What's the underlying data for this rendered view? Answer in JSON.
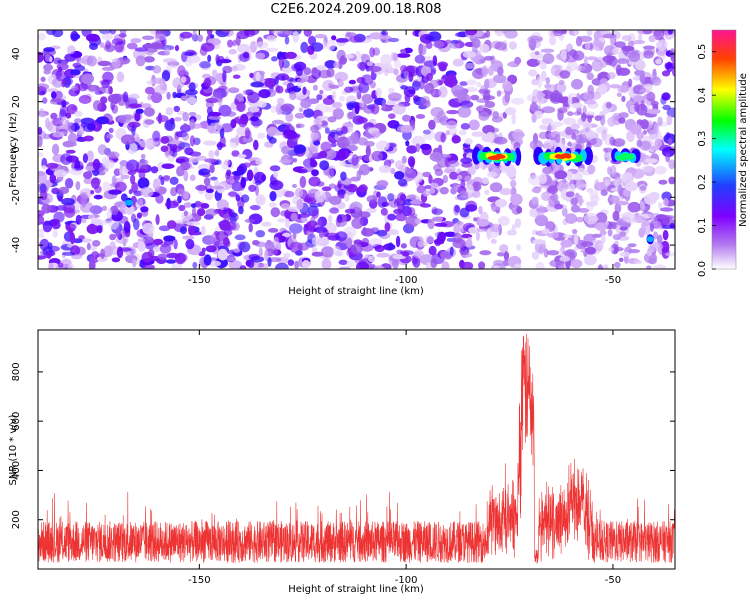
{
  "title": "C2E6.2024.209.00.18.R08",
  "chart_data": [
    {
      "type": "heatmap",
      "xlabel": "Height of straight line (km)",
      "ylabel": "Frequency (Hz)",
      "xlim": [
        -189,
        -35
      ],
      "ylim": [
        -50,
        50
      ],
      "xticks": [
        -150,
        -100,
        -50
      ],
      "yticks": [
        -40,
        -20,
        0,
        20,
        40
      ],
      "colorbar": {
        "label": "Normalized spectral amplitude",
        "range": [
          0,
          0.55
        ],
        "ticks": [
          0.0,
          0.1,
          0.2,
          0.3,
          0.4,
          0.5
        ],
        "colors": [
          "#ffffff",
          "#8a2be2",
          "#3300ff",
          "#00ffff",
          "#00ff00",
          "#ffff00",
          "#ff0000",
          "#ff1493"
        ]
      },
      "gap_x": [
        -72.5,
        -69.5
      ],
      "features": [
        {
          "x": -78,
          "y": -3,
          "width_km": 10,
          "amplitude": 0.45
        },
        {
          "x": -62,
          "y": -3,
          "width_km": 12,
          "amplitude": 0.4
        },
        {
          "x": -47,
          "y": -3,
          "width_km": 5,
          "amplitude": 0.25
        },
        {
          "x": -167,
          "y": -22,
          "width_km": 2,
          "amplitude": 0.2
        },
        {
          "x": -41,
          "y": -37,
          "width_km": 2,
          "amplitude": 0.15
        }
      ]
    },
    {
      "type": "line",
      "xlabel": "Height of straight line (km)",
      "ylabel": "SNR (10 * v/v)",
      "xlim": [
        -189,
        -35
      ],
      "ylim": [
        0,
        970
      ],
      "xticks": [
        -150,
        -100,
        -50
      ],
      "yticks": [
        200,
        400,
        600,
        800
      ],
      "color": "#ee3333",
      "baseline_mean": 110,
      "peaks": [
        {
          "x": -71,
          "value": 960
        },
        {
          "x": -74,
          "value": 460
        },
        {
          "x": -70,
          "value": 820
        },
        {
          "x": -59,
          "value": 450
        },
        {
          "x": -66,
          "value": 320
        }
      ]
    }
  ]
}
